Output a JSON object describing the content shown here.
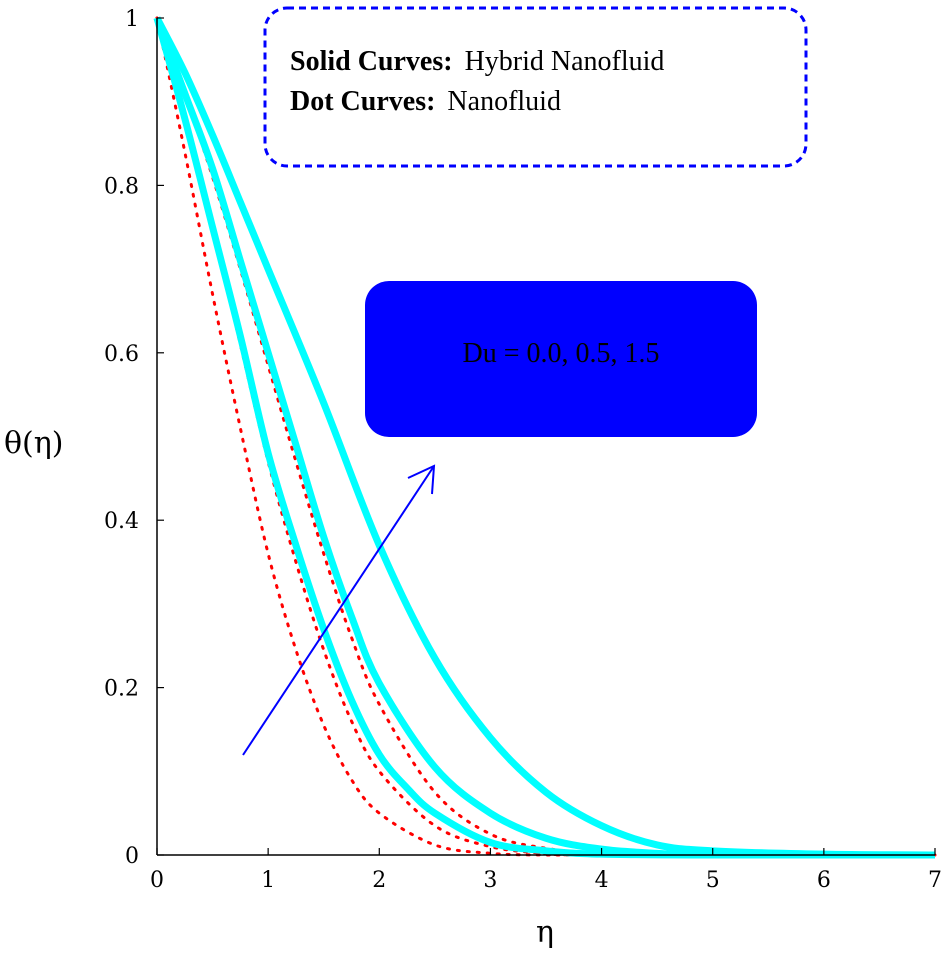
{
  "chart_data": {
    "type": "line",
    "xlabel": "η",
    "ylabel": "θ(η)",
    "xlim": [
      0,
      7
    ],
    "ylim": [
      0,
      1
    ],
    "xticks": [
      "0",
      "1",
      "2",
      "3",
      "4",
      "5",
      "6",
      "7"
    ],
    "yticks": [
      "0",
      "0.2",
      "0.4",
      "0.6",
      "0.8",
      "1"
    ],
    "grid": false,
    "legend": {
      "solid_label_bold": "Solid Curves:",
      "solid_label": "Hybrid Nanofluid",
      "dot_label_bold": "Dot Curves:",
      "dot_label": "Nanofluid"
    },
    "annotation": "Du = 0.0, 0.5, 1.5",
    "colors": {
      "solid": "#00ffff",
      "dotted": "#ff0000",
      "legend_border": "#0000ff",
      "annotation_box": "#0000ff",
      "arrow": "#0000ff"
    },
    "series": [
      {
        "style": "solid",
        "x": [
          0,
          0.25,
          0.5,
          0.75,
          1,
          1.25,
          1.5,
          1.75,
          2,
          2.25,
          2.5,
          3,
          3.5,
          4,
          5,
          7
        ],
        "y": [
          1,
          0.88,
          0.75,
          0.62,
          0.48,
          0.37,
          0.27,
          0.185,
          0.12,
          0.08,
          0.05,
          0.015,
          0.005,
          0.001,
          0,
          0
        ]
      },
      {
        "style": "solid",
        "x": [
          0,
          0.25,
          0.5,
          0.75,
          1,
          1.25,
          1.5,
          1.75,
          2,
          2.5,
          3,
          3.5,
          4,
          4.5,
          5,
          7
        ],
        "y": [
          1,
          0.91,
          0.82,
          0.71,
          0.6,
          0.49,
          0.38,
          0.285,
          0.205,
          0.105,
          0.05,
          0.02,
          0.007,
          0.002,
          0,
          0
        ]
      },
      {
        "style": "solid",
        "x": [
          0,
          0.25,
          0.5,
          0.75,
          1,
          1.5,
          2,
          2.5,
          3,
          3.5,
          4,
          4.5,
          5,
          6,
          7
        ],
        "y": [
          1,
          0.935,
          0.86,
          0.78,
          0.7,
          0.54,
          0.37,
          0.235,
          0.14,
          0.075,
          0.035,
          0.012,
          0.005,
          0.001,
          0
        ]
      },
      {
        "style": "dotted",
        "x": [
          0,
          0.25,
          0.5,
          0.75,
          1,
          1.25,
          1.5,
          1.75,
          2,
          2.5,
          3,
          3.5,
          4,
          7
        ],
        "y": [
          1,
          0.84,
          0.67,
          0.51,
          0.36,
          0.245,
          0.155,
          0.09,
          0.05,
          0.012,
          0.002,
          0,
          0,
          0
        ]
      },
      {
        "style": "dotted",
        "x": [
          0,
          0.25,
          0.5,
          0.75,
          1,
          1.25,
          1.5,
          1.75,
          2,
          2.5,
          3,
          3.5,
          4,
          7
        ],
        "y": [
          1,
          0.88,
          0.75,
          0.61,
          0.47,
          0.35,
          0.245,
          0.16,
          0.1,
          0.035,
          0.01,
          0.002,
          0,
          0
        ]
      },
      {
        "style": "dotted",
        "x": [
          0,
          0.25,
          0.5,
          0.75,
          1,
          1.25,
          1.5,
          1.75,
          2,
          2.5,
          3,
          3.5,
          4,
          4.5,
          7
        ],
        "y": [
          1,
          0.91,
          0.81,
          0.7,
          0.585,
          0.47,
          0.36,
          0.26,
          0.18,
          0.075,
          0.025,
          0.008,
          0.002,
          0,
          0
        ]
      }
    ]
  }
}
